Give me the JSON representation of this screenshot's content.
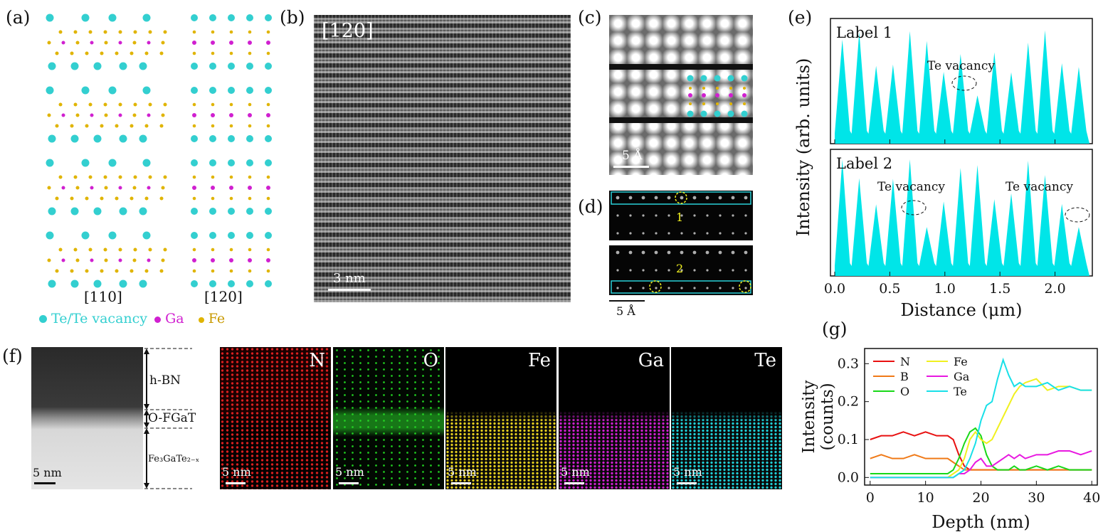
{
  "panel_labels": {
    "a": "(a)",
    "b": "(b)",
    "c": "(c)",
    "d": "(d)",
    "e": "(e)",
    "f": "(f)",
    "g": "(g)"
  },
  "panel_a": {
    "left_caption": "[110]",
    "right_caption": "[120]",
    "legend": [
      {
        "label": "Te/Te vacancy",
        "color": "#33cfd0"
      },
      {
        "label": "Ga",
        "color": "#d020d0"
      },
      {
        "label": "Fe",
        "color": "#e0b400"
      }
    ]
  },
  "panel_b": {
    "orientation": "[120]",
    "scalebar": "3 nm"
  },
  "panel_c": {
    "scalebar": "5 Å"
  },
  "panel_d": {
    "row1": "1",
    "row2": "2",
    "scalebar": "5 Å"
  },
  "panel_e": {
    "top_label": "Label 1",
    "top_annotation": "Te vacancy",
    "bottom_label": "Label 2",
    "bottom_annotations": [
      "Te vacancy",
      "Te vacancy"
    ],
    "ylabel": "Intensity (arb. units)",
    "xlabel": "Distance (μm)",
    "xticks": [
      "0.0",
      "0.5",
      "1.0",
      "1.5",
      "2.0"
    ],
    "fill_color": "#00e5e8"
  },
  "panel_f": {
    "layers": [
      "h-BN",
      "O-FGaT",
      "Fe₃GaTe₂₋ₓ"
    ],
    "maps": [
      {
        "element": "N",
        "color": "#e02020"
      },
      {
        "element": "O",
        "color": "#20d020"
      },
      {
        "element": "Fe",
        "color": "#e6d020"
      },
      {
        "element": "Ga",
        "color": "#d020d0"
      },
      {
        "element": "Te",
        "color": "#20d0d8"
      }
    ],
    "scalebar": "5 nm"
  },
  "chart_data": {
    "type": "line",
    "xlabel": "Depth (nm)",
    "ylabel": "Intensity (counts)",
    "xlim": [
      -1,
      41
    ],
    "ylim": [
      -0.02,
      0.34
    ],
    "xticks": [
      0,
      10,
      20,
      30,
      40
    ],
    "yticks": [
      0.0,
      0.1,
      0.2,
      0.3
    ],
    "legend_position": "top-left",
    "x": [
      0,
      2,
      4,
      6,
      8,
      10,
      12,
      14,
      15,
      16,
      17,
      18,
      19,
      20,
      21,
      22,
      23,
      24,
      25,
      26,
      27,
      28,
      30,
      32,
      34,
      36,
      38,
      40
    ],
    "series": [
      {
        "name": "N",
        "color": "#e81010",
        "values": [
          0.1,
          0.11,
          0.11,
          0.12,
          0.11,
          0.12,
          0.11,
          0.11,
          0.1,
          0.06,
          0.03,
          0.02,
          0.02,
          0.02,
          0.02,
          0.02,
          0.02,
          0.02,
          0.02,
          0.02,
          0.02,
          0.02,
          0.02,
          0.02,
          0.02,
          0.02,
          0.02,
          0.02
        ]
      },
      {
        "name": "B",
        "color": "#f07a18",
        "values": [
          0.05,
          0.06,
          0.05,
          0.05,
          0.06,
          0.05,
          0.05,
          0.05,
          0.04,
          0.03,
          0.02,
          0.02,
          0.02,
          0.02,
          0.02,
          0.02,
          0.02,
          0.02,
          0.02,
          0.02,
          0.02,
          0.02,
          0.02,
          0.02,
          0.02,
          0.02,
          0.02,
          0.02
        ]
      },
      {
        "name": "O",
        "color": "#18d818",
        "values": [
          0.01,
          0.01,
          0.01,
          0.01,
          0.01,
          0.01,
          0.01,
          0.01,
          0.02,
          0.05,
          0.09,
          0.12,
          0.13,
          0.11,
          0.06,
          0.03,
          0.02,
          0.02,
          0.02,
          0.03,
          0.02,
          0.02,
          0.03,
          0.02,
          0.03,
          0.02,
          0.02,
          0.02
        ]
      },
      {
        "name": "Fe",
        "color": "#f0f020",
        "values": [
          0.0,
          0.0,
          0.0,
          0.0,
          0.0,
          0.0,
          0.0,
          0.0,
          0.01,
          0.02,
          0.05,
          0.1,
          0.12,
          0.1,
          0.09,
          0.1,
          0.13,
          0.16,
          0.19,
          0.22,
          0.24,
          0.25,
          0.26,
          0.23,
          0.24,
          0.24,
          0.23,
          0.23
        ]
      },
      {
        "name": "Ga",
        "color": "#e818e0",
        "values": [
          0.0,
          0.0,
          0.0,
          0.0,
          0.0,
          0.0,
          0.0,
          0.0,
          0.0,
          0.01,
          0.01,
          0.02,
          0.04,
          0.05,
          0.03,
          0.03,
          0.04,
          0.05,
          0.06,
          0.05,
          0.06,
          0.05,
          0.06,
          0.06,
          0.07,
          0.07,
          0.06,
          0.07
        ]
      },
      {
        "name": "Te",
        "color": "#18e0e8",
        "values": [
          0.0,
          0.0,
          0.0,
          0.0,
          0.0,
          0.0,
          0.0,
          0.0,
          0.0,
          0.01,
          0.02,
          0.05,
          0.09,
          0.15,
          0.19,
          0.2,
          0.26,
          0.31,
          0.27,
          0.24,
          0.25,
          0.24,
          0.24,
          0.25,
          0.23,
          0.24,
          0.23,
          0.23
        ]
      }
    ]
  }
}
